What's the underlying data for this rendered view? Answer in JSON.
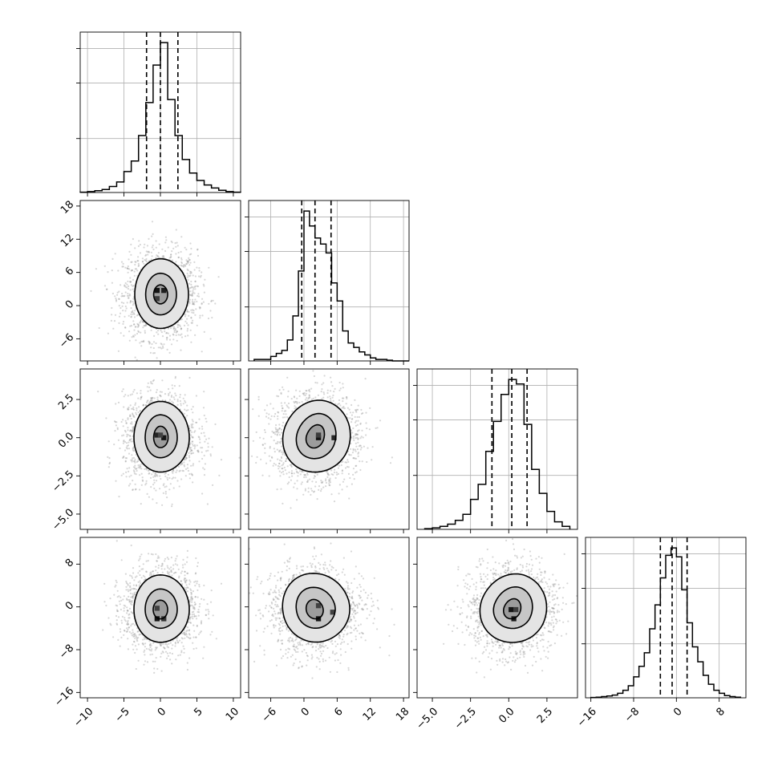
{
  "chart_data": {
    "type": "corner",
    "dims": [
      {
        "range": [
          -11,
          11
        ],
        "ticks": [
          -10,
          -5,
          0,
          5,
          10
        ],
        "tick_labels": [
          "−10",
          "−5",
          "0",
          "5",
          "10"
        ],
        "quantiles": [
          -1.9,
          0.0,
          2.4
        ]
      },
      {
        "range": [
          -10,
          19
        ],
        "ticks": [
          -6,
          0,
          6,
          12,
          18
        ],
        "tick_labels": [
          "−6",
          "0",
          "6",
          "12",
          "18"
        ],
        "quantiles": [
          -0.4,
          2.0,
          4.9
        ]
      },
      {
        "range": [
          -6,
          4.5
        ],
        "ticks": [
          -5.0,
          -2.5,
          0.0,
          2.5
        ],
        "tick_labels": [
          "−5.0",
          "−2.5",
          "0.0",
          "2.5"
        ],
        "quantiles": [
          -1.1,
          0.2,
          1.2
        ]
      },
      {
        "range": [
          -17,
          13
        ],
        "ticks": [
          -16,
          -8,
          0,
          8
        ],
        "tick_labels": [
          "−16",
          "−8",
          "0",
          "8"
        ],
        "quantiles": [
          -3.0,
          -0.8,
          2.0
        ]
      }
    ],
    "histograms": [
      {
        "edges": [
          -11,
          -10,
          -9,
          -8,
          -7,
          -6,
          -5,
          -4,
          -3,
          -2,
          -1,
          0,
          1,
          2,
          3,
          4,
          5,
          6,
          7,
          8,
          9,
          10,
          11
        ],
        "counts": [
          0.002,
          0.006,
          0.012,
          0.02,
          0.04,
          0.07,
          0.14,
          0.21,
          0.38,
          0.6,
          0.85,
          1.0,
          0.62,
          0.38,
          0.22,
          0.13,
          0.08,
          0.05,
          0.03,
          0.015,
          0.006,
          0.002
        ]
      },
      {
        "edges": [
          -9,
          -8,
          -7,
          -6,
          -5,
          -4,
          -3,
          -2,
          -1,
          0,
          1,
          2,
          3,
          4,
          5,
          6,
          7,
          8,
          9,
          10,
          11,
          12,
          13,
          14,
          15,
          16,
          17,
          18,
          19
        ],
        "counts": [
          0.01,
          0.01,
          0.01,
          0.03,
          0.05,
          0.07,
          0.14,
          0.3,
          0.6,
          1.0,
          0.9,
          0.82,
          0.78,
          0.72,
          0.52,
          0.4,
          0.2,
          0.12,
          0.09,
          0.06,
          0.04,
          0.02,
          0.01,
          0.01,
          0.005,
          0.0,
          0.0,
          0.0
        ]
      },
      {
        "edges": [
          -5.5,
          -5.0,
          -4.5,
          -4.0,
          -3.5,
          -3.0,
          -2.5,
          -2.0,
          -1.5,
          -1.0,
          -0.5,
          0.0,
          0.5,
          1.0,
          1.5,
          2.0,
          2.5,
          3.0,
          3.5,
          4.0
        ],
        "counts": [
          0.005,
          0.01,
          0.02,
          0.035,
          0.06,
          0.1,
          0.2,
          0.3,
          0.52,
          0.72,
          0.9,
          1.0,
          0.97,
          0.7,
          0.4,
          0.24,
          0.12,
          0.05,
          0.02
        ]
      },
      {
        "edges": [
          -16,
          -15,
          -14,
          -13,
          -12,
          -11,
          -10,
          -9,
          -8,
          -7,
          -6,
          -5,
          -4,
          -3,
          -2,
          -1,
          0,
          1,
          2,
          3,
          4,
          5,
          6,
          7,
          8,
          9,
          10,
          11,
          12
        ],
        "counts": [
          0.002,
          0.004,
          0.008,
          0.012,
          0.018,
          0.03,
          0.05,
          0.08,
          0.14,
          0.21,
          0.3,
          0.46,
          0.62,
          0.8,
          0.95,
          1.0,
          0.94,
          0.72,
          0.5,
          0.34,
          0.24,
          0.15,
          0.09,
          0.05,
          0.03,
          0.015,
          0.008,
          0.004
        ]
      }
    ],
    "hist_yticks": [
      0.36,
      0.73,
      0.96
    ],
    "pairs": [
      {
        "row": 1,
        "col": 0,
        "mean": [
          0.0,
          2.0
        ],
        "sd": [
          2.2,
          3.5
        ],
        "rot": 0.0,
        "contours": [
          [
            0.45,
            0.5,
            0.42,
            0.48
          ],
          [
            1.0,
            1.1,
            0.92,
            1.05
          ],
          [
            1.75,
            1.85,
            1.6,
            1.75
          ]
        ],
        "dark": [
          [
            -0.6,
            0.6,
            1.0
          ],
          [
            0.6,
            0.6,
            0.9
          ],
          [
            -0.6,
            -0.6,
            0.6
          ]
        ]
      },
      {
        "row": 2,
        "col": 0,
        "mean": [
          0.0,
          0.0
        ],
        "sd": [
          2.2,
          1.25
        ],
        "rot": 0.0,
        "contours": [
          [
            0.48,
            0.6,
            0.42,
            0.52
          ],
          [
            1.05,
            1.2,
            0.95,
            1.05
          ],
          [
            1.8,
            1.9,
            1.65,
            1.8
          ]
        ],
        "dark": [
          [
            -0.6,
            0.4,
            0.85
          ],
          [
            0.6,
            0.0,
            1.0
          ],
          [
            0.0,
            0.4,
            0.55
          ]
        ]
      },
      {
        "row": 2,
        "col": 1,
        "mean": [
          2.0,
          0.0
        ],
        "sd": [
          3.5,
          1.25
        ],
        "rot": -0.35,
        "contours": [
          [
            0.45,
            0.7,
            0.45,
            0.55
          ],
          [
            1.05,
            1.3,
            0.95,
            1.1
          ],
          [
            1.8,
            2.0,
            1.65,
            1.8
          ]
        ],
        "dark": [
          [
            0.5,
            0.0,
            1.0
          ],
          [
            2.8,
            0.0,
            0.8
          ],
          [
            0.5,
            0.4,
            0.6
          ]
        ]
      },
      {
        "row": 3,
        "col": 0,
        "mean": [
          0.0,
          -0.5
        ],
        "sd": [
          2.2,
          3.5
        ],
        "rot": 0.0,
        "contours": [
          [
            0.45,
            0.5,
            0.45,
            0.5
          ],
          [
            1.05,
            1.1,
            0.95,
            1.0
          ],
          [
            1.8,
            1.85,
            1.65,
            1.75
          ]
        ],
        "dark": [
          [
            -0.6,
            -1.4,
            1.0
          ],
          [
            0.6,
            -1.4,
            0.7
          ],
          [
            -0.6,
            0.2,
            0.55
          ]
        ]
      },
      {
        "row": 3,
        "col": 1,
        "mean": [
          2.0,
          -0.5
        ],
        "sd": [
          3.5,
          3.5
        ],
        "rot": 0.3,
        "contours": [
          [
            0.42,
            0.55,
            0.45,
            0.5
          ],
          [
            1.05,
            1.2,
            0.95,
            1.0
          ],
          [
            1.8,
            1.95,
            1.65,
            1.75
          ]
        ],
        "dark": [
          [
            0.5,
            -1.4,
            1.0
          ],
          [
            0.5,
            0.6,
            0.55
          ],
          [
            2.6,
            -0.4,
            0.55
          ]
        ]
      },
      {
        "row": 3,
        "col": 2,
        "mean": [
          0.2,
          -0.5
        ],
        "sd": [
          1.25,
          3.5
        ],
        "rot": -0.4,
        "contours": [
          [
            0.45,
            0.6,
            0.42,
            0.5
          ],
          [
            1.05,
            1.25,
            0.95,
            1.0
          ],
          [
            1.8,
            1.95,
            1.65,
            1.75
          ]
        ],
        "dark": [
          [
            -0.1,
            0.0,
            1.0
          ],
          [
            0.3,
            -1.4,
            0.95
          ],
          [
            0.6,
            0.0,
            0.6
          ]
        ]
      }
    ]
  }
}
